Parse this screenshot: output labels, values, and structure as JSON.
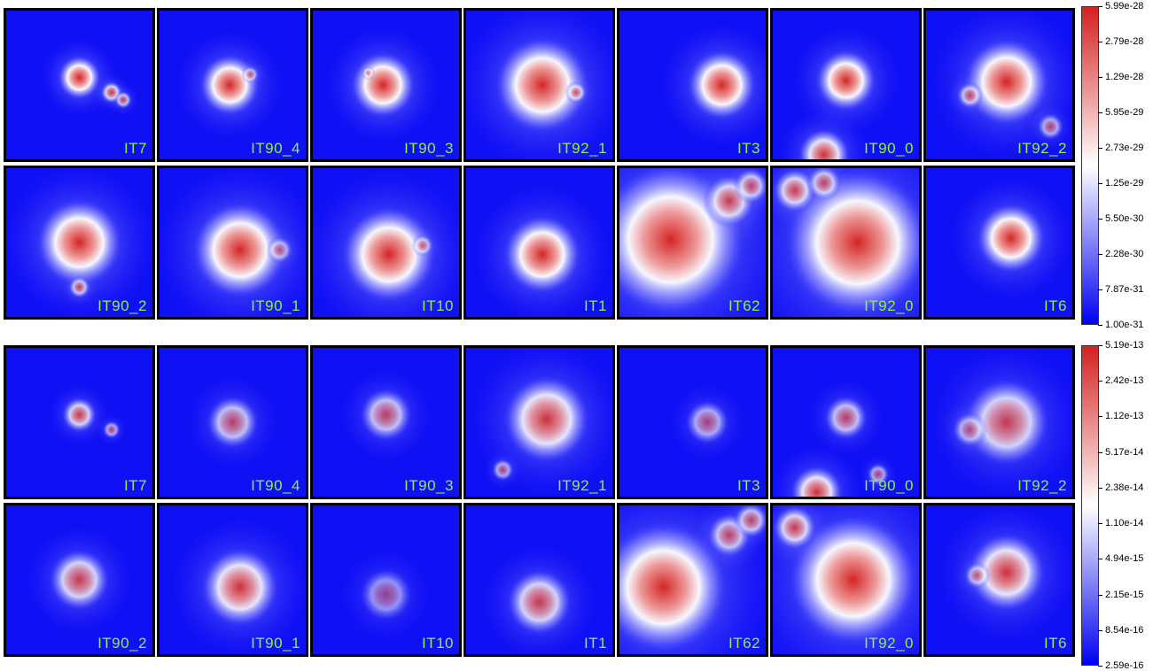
{
  "panels": [
    {
      "id": "top",
      "colorbar": {
        "ticks": [
          "5.99e-28",
          "2.79e-28",
          "1.29e-28",
          "5.95e-29",
          "2.73e-29",
          "1.25e-29",
          "5.50e-30",
          "2.28e-30",
          "7.87e-31",
          "1.00e-31"
        ],
        "colors": [
          "#d42020",
          "#ffffff",
          "#0000f0"
        ]
      },
      "tiles": [
        {
          "label": "IT7",
          "blobs": [
            [
              0.5,
              0.45,
              0.1,
              1
            ],
            [
              0.72,
              0.55,
              0.05,
              0.8
            ],
            [
              0.8,
              0.6,
              0.04,
              0.7
            ]
          ]
        },
        {
          "label": "IT90_4",
          "blobs": [
            [
              0.48,
              0.5,
              0.14,
              1
            ],
            [
              0.62,
              0.43,
              0.04,
              0.6
            ]
          ]
        },
        {
          "label": "IT90_3",
          "blobs": [
            [
              0.48,
              0.5,
              0.15,
              1
            ],
            [
              0.38,
              0.42,
              0.03,
              0.6
            ]
          ]
        },
        {
          "label": "IT92_1",
          "blobs": [
            [
              0.52,
              0.5,
              0.22,
              1
            ],
            [
              0.75,
              0.55,
              0.05,
              0.7
            ]
          ]
        },
        {
          "label": "IT3",
          "blobs": [
            [
              0.7,
              0.5,
              0.16,
              1
            ]
          ]
        },
        {
          "label": "IT90_0",
          "blobs": [
            [
              0.5,
              0.47,
              0.14,
              1
            ],
            [
              0.35,
              0.97,
              0.12,
              0.9
            ]
          ]
        },
        {
          "label": "IT92_2",
          "blobs": [
            [
              0.55,
              0.48,
              0.2,
              1
            ],
            [
              0.3,
              0.57,
              0.06,
              0.7
            ],
            [
              0.85,
              0.78,
              0.06,
              0.6
            ]
          ]
        },
        {
          "label": "IT90_2",
          "blobs": [
            [
              0.5,
              0.5,
              0.2,
              1
            ],
            [
              0.5,
              0.8,
              0.05,
              0.7
            ]
          ]
        },
        {
          "label": "IT90_1",
          "blobs": [
            [
              0.55,
              0.55,
              0.22,
              1
            ],
            [
              0.82,
              0.55,
              0.06,
              0.6
            ]
          ]
        },
        {
          "label": "IT10",
          "blobs": [
            [
              0.52,
              0.58,
              0.22,
              1
            ],
            [
              0.75,
              0.52,
              0.05,
              0.6
            ]
          ]
        },
        {
          "label": "IT1",
          "blobs": [
            [
              0.52,
              0.58,
              0.18,
              1
            ]
          ]
        },
        {
          "label": "IT62",
          "blobs": [
            [
              0.35,
              0.48,
              0.35,
              1
            ],
            [
              0.75,
              0.22,
              0.12,
              0.8
            ],
            [
              0.9,
              0.12,
              0.08,
              0.7
            ]
          ]
        },
        {
          "label": "IT92_0",
          "blobs": [
            [
              0.58,
              0.5,
              0.34,
              1
            ],
            [
              0.15,
              0.15,
              0.1,
              0.8
            ],
            [
              0.35,
              0.1,
              0.08,
              0.7
            ]
          ]
        },
        {
          "label": "IT6",
          "blobs": [
            [
              0.58,
              0.47,
              0.16,
              1
            ]
          ]
        }
      ]
    },
    {
      "id": "bottom",
      "colorbar": {
        "ticks": [
          "5.19e-13",
          "2.42e-13",
          "1.12e-13",
          "5.17e-14",
          "2.38e-14",
          "1.10e-14",
          "4.94e-15",
          "2.15e-15",
          "8.54e-16",
          "2.59e-16"
        ],
        "colors": [
          "#d42020",
          "#ffffff",
          "#0000f0"
        ]
      },
      "tiles": [
        {
          "label": "IT7",
          "blobs": [
            [
              0.5,
              0.45,
              0.08,
              0.8
            ],
            [
              0.72,
              0.55,
              0.04,
              0.6
            ]
          ]
        },
        {
          "label": "IT90_4",
          "blobs": [
            [
              0.5,
              0.5,
              0.12,
              0.7
            ]
          ]
        },
        {
          "label": "IT90_3",
          "blobs": [
            [
              0.5,
              0.45,
              0.12,
              0.7
            ]
          ]
        },
        {
          "label": "IT92_1",
          "blobs": [
            [
              0.55,
              0.48,
              0.2,
              0.9
            ],
            [
              0.25,
              0.82,
              0.05,
              0.6
            ]
          ]
        },
        {
          "label": "IT3",
          "blobs": [
            [
              0.6,
              0.5,
              0.1,
              0.6
            ]
          ]
        },
        {
          "label": "IT90_0",
          "blobs": [
            [
              0.5,
              0.47,
              0.1,
              0.7
            ],
            [
              0.3,
              0.97,
              0.12,
              0.9
            ],
            [
              0.72,
              0.85,
              0.05,
              0.6
            ]
          ]
        },
        {
          "label": "IT92_2",
          "blobs": [
            [
              0.55,
              0.5,
              0.2,
              0.8
            ],
            [
              0.3,
              0.55,
              0.08,
              0.6
            ]
          ]
        },
        {
          "label": "IT90_2",
          "blobs": [
            [
              0.5,
              0.5,
              0.14,
              0.8
            ]
          ]
        },
        {
          "label": "IT90_1",
          "blobs": [
            [
              0.55,
              0.55,
              0.18,
              0.9
            ]
          ]
        },
        {
          "label": "IT10",
          "blobs": [
            [
              0.5,
              0.6,
              0.12,
              0.5
            ]
          ]
        },
        {
          "label": "IT1",
          "blobs": [
            [
              0.5,
              0.65,
              0.15,
              0.8
            ]
          ]
        },
        {
          "label": "IT62",
          "blobs": [
            [
              0.3,
              0.55,
              0.3,
              1
            ],
            [
              0.75,
              0.2,
              0.1,
              0.7
            ],
            [
              0.9,
              0.1,
              0.08,
              0.7
            ]
          ]
        },
        {
          "label": "IT92_0",
          "blobs": [
            [
              0.55,
              0.5,
              0.3,
              1
            ],
            [
              0.15,
              0.15,
              0.1,
              0.8
            ]
          ]
        },
        {
          "label": "IT6",
          "blobs": [
            [
              0.55,
              0.45,
              0.18,
              0.9
            ],
            [
              0.35,
              0.47,
              0.06,
              0.6
            ]
          ]
        }
      ]
    }
  ]
}
